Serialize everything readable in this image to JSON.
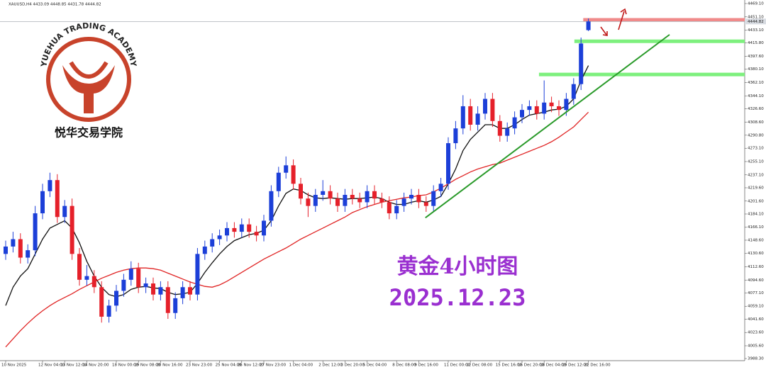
{
  "chart_data": {
    "type": "candlestick",
    "header": "XAUUSD,H4  4433.09 4448.85 4431.78 4444.82",
    "logo_text": "YUEHUA TRADING ACADEMY",
    "logo_name": "悦华交易学院",
    "annotation_title": "黄金4小时图",
    "annotation_date": "2025.12.23",
    "categories": [
      "10 Nov 2025",
      null,
      null,
      null,
      null,
      "12 Nov 04:00",
      null,
      null,
      "13 Nov 12:00",
      null,
      null,
      "14 Nov 20:00",
      null,
      null,
      null,
      "18 Nov 00:00",
      null,
      null,
      "19 Nov 08:00",
      null,
      null,
      "20 Nov 16:00",
      null,
      null,
      null,
      "23 Nov 23:00",
      null,
      null,
      null,
      "25 Nov 04:00",
      null,
      null,
      "26 Nov 12:00",
      null,
      null,
      "27 Nov 23:00",
      null,
      null,
      null,
      "1 Dec 04:00",
      null,
      null,
      null,
      "2 Dec 12:00",
      null,
      null,
      "3 Dec 20:00",
      null,
      null,
      "5 Dec 04:00",
      null,
      null,
      null,
      "8 Dec 08:00",
      null,
      null,
      "9 Dec 16:00",
      null,
      null,
      null,
      "11 Dec 00:00",
      null,
      null,
      "12 Dec 08:00",
      null,
      null,
      null,
      "15 Dec 16:00",
      null,
      null,
      "16 Dec 20:00",
      null,
      null,
      "18 Dec 04:00",
      null,
      null,
      "19 Dec 12:00",
      null,
      null,
      "22 Dec 16:00"
    ],
    "open": [
      4130,
      4140,
      4150,
      4125,
      4135,
      4185,
      4215,
      4230,
      4180,
      4195,
      4130,
      4095,
      4100,
      4085,
      4045,
      4060,
      4080,
      4095,
      4110,
      4085,
      4090,
      4075,
      4085,
      4050,
      4070,
      4085,
      4075,
      4130,
      4140,
      4150,
      4155,
      4165,
      4160,
      4170,
      4160,
      4155,
      4175,
      4215,
      4240,
      4250,
      4225,
      4205,
      4195,
      4210,
      4215,
      4205,
      4195,
      4210,
      4205,
      4200,
      4215,
      4205,
      4200,
      4185,
      4195,
      4205,
      4210,
      4200,
      4195,
      4215,
      4225,
      4280,
      4300,
      4330,
      4305,
      4320,
      4340,
      4310,
      4290,
      4300,
      4315,
      4325,
      4330,
      4320,
      4335,
      4330,
      4325,
      4340,
      4360,
      4433.09
    ],
    "high": [
      4148,
      4160,
      4158,
      4143,
      4195,
      4225,
      4240,
      4238,
      4203,
      4205,
      4138,
      4115,
      4108,
      4093,
      4068,
      4088,
      4103,
      4120,
      4118,
      4098,
      4098,
      4093,
      4093,
      4078,
      4093,
      4093,
      4138,
      4148,
      4158,
      4163,
      4173,
      4173,
      4178,
      4178,
      4168,
      4183,
      4223,
      4248,
      4262,
      4258,
      4233,
      4213,
      4218,
      4230,
      4223,
      4213,
      4218,
      4218,
      4213,
      4223,
      4223,
      4213,
      4208,
      4203,
      4213,
      4218,
      4218,
      4208,
      4223,
      4233,
      4288,
      4310,
      4345,
      4340,
      4330,
      4348,
      4348,
      4318,
      4308,
      4323,
      4333,
      4338,
      4338,
      4365,
      4343,
      4338,
      4348,
      4368,
      4423,
      4448.85
    ],
    "low": [
      4122,
      4132,
      4117,
      4117,
      4127,
      4177,
      4207,
      4172,
      4172,
      4122,
      4087,
      4087,
      4077,
      4037,
      4037,
      4052,
      4072,
      4087,
      4077,
      4077,
      4067,
      4067,
      4042,
      4042,
      4062,
      4067,
      4067,
      4122,
      4132,
      4142,
      4147,
      4152,
      4152,
      4152,
      4147,
      4147,
      4167,
      4207,
      4232,
      4217,
      4197,
      4180,
      4187,
      4202,
      4197,
      4187,
      4187,
      4197,
      4192,
      4192,
      4197,
      4192,
      4177,
      4177,
      4187,
      4197,
      4192,
      4187,
      4187,
      4207,
      4217,
      4272,
      4292,
      4297,
      4297,
      4312,
      4302,
      4282,
      4282,
      4292,
      4307,
      4317,
      4312,
      4312,
      4322,
      4317,
      4317,
      4332,
      4352,
      4431.78
    ],
    "close": [
      4140,
      4150,
      4125,
      4135,
      4185,
      4215,
      4230,
      4180,
      4195,
      4130,
      4095,
      4100,
      4085,
      4045,
      4060,
      4080,
      4095,
      4110,
      4085,
      4090,
      4075,
      4085,
      4050,
      4070,
      4085,
      4075,
      4130,
      4140,
      4150,
      4155,
      4165,
      4160,
      4170,
      4160,
      4155,
      4175,
      4215,
      4240,
      4250,
      4225,
      4205,
      4195,
      4210,
      4215,
      4205,
      4195,
      4210,
      4205,
      4200,
      4215,
      4205,
      4200,
      4185,
      4195,
      4205,
      4210,
      4200,
      4195,
      4215,
      4225,
      4280,
      4300,
      4330,
      4305,
      4320,
      4340,
      4310,
      4290,
      4300,
      4315,
      4325,
      4330,
      4320,
      4335,
      4330,
      4325,
      4340,
      4360,
      4415,
      4444.82
    ],
    "up_color": "#1c3fd8",
    "down_color": "#e5202a",
    "moving_averages": [
      {
        "color": "#111111",
        "values": [
          4060,
          4085,
          4100,
          4110,
          4130,
          4150,
          4165,
          4170,
          4175,
          4165,
          4145,
          4120,
          4100,
          4085,
          4075,
          4072,
          4075,
          4082,
          4085,
          4086,
          4084,
          4083,
          4078,
          4075,
          4076,
          4078,
          4090,
          4105,
          4118,
          4130,
          4140,
          4148,
          4152,
          4156,
          4158,
          4162,
          4175,
          4195,
          4212,
          4218,
          4216,
          4210,
          4206,
          4205,
          4206,
          4205,
          4204,
          4205,
          4205,
          4206,
          4207,
          4205,
          4200,
          4197,
          4197,
          4200,
          4202,
          4200,
          4203,
          4208,
          4225,
          4245,
          4270,
          4285,
          4295,
          4305,
          4305,
          4300,
          4300,
          4305,
          4312,
          4318,
          4320,
          4322,
          4325,
          4326,
          4330,
          4340,
          4365,
          4385
        ]
      },
      {
        "color": "#e02424",
        "values": [
          4004,
          4015,
          4026,
          4036,
          4045,
          4053,
          4060,
          4066,
          4071,
          4076,
          4082,
          4087,
          4092,
          4097,
          4101,
          4105,
          4108,
          4110,
          4111,
          4111,
          4110,
          4108,
          4104,
          4100,
          4096,
          4092,
          4089,
          4086,
          4085,
          4088,
          4093,
          4099,
          4105,
          4111,
          4117,
          4123,
          4128,
          4133,
          4138,
          4144,
          4150,
          4155,
          4160,
          4165,
          4170,
          4175,
          4180,
          4186,
          4190,
          4194,
          4197,
          4200,
          4202,
          4204,
          4206,
          4207,
          4209,
          4210,
          4214,
          4219,
          4225,
          4231,
          4236,
          4241,
          4245,
          4248,
          4251,
          4253,
          4257,
          4261,
          4265,
          4269,
          4273,
          4277,
          4282,
          4288,
          4295,
          4302,
          4312,
          4322
        ]
      }
    ],
    "levels": [
      {
        "value": 4447,
        "color": "#f08a8a",
        "from": 78.3
      },
      {
        "value": 4418,
        "color": "#7ef07e",
        "from": 77.1
      },
      {
        "value": 4373,
        "color": "#7ef07e",
        "from": 72.3
      }
    ],
    "trendline": {
      "color": "#2a9a2a",
      "x": [
        56.9,
        90
      ],
      "y": [
        4179,
        4427
      ]
    },
    "last_price": {
      "value": 4444.82,
      "label": "4444.82"
    },
    "ylim": [
      3986.4,
      4473.9
    ],
    "yticks": [
      {
        "value": 4469.1,
        "label": "4469.10"
      },
      {
        "value": 4451.1,
        "label": "4451.10"
      },
      {
        "value": 4433.1,
        "label": "4433.10"
      },
      {
        "value": 4415.8,
        "label": "4415.80"
      },
      {
        "value": 4397.6,
        "label": "4397.60"
      },
      {
        "value": 4380.1,
        "label": "4380.10"
      },
      {
        "value": 4362.1,
        "label": "4362.10"
      },
      {
        "value": 4344.1,
        "label": "4344.10"
      },
      {
        "value": 4326.6,
        "label": "4326.60"
      },
      {
        "value": 4308.6,
        "label": "4308.60"
      },
      {
        "value": 4290.8,
        "label": "4290.80"
      },
      {
        "value": 4273.1,
        "label": "4273.10"
      },
      {
        "value": 4255.1,
        "label": "4255.10"
      },
      {
        "value": 4237.1,
        "label": "4237.10"
      },
      {
        "value": 4219.6,
        "label": "4219.60"
      },
      {
        "value": 4201.6,
        "label": "4201.60"
      },
      {
        "value": 4184.1,
        "label": "4184.10"
      },
      {
        "value": 4166.1,
        "label": "4166.10"
      },
      {
        "value": 4148.6,
        "label": "4148.60"
      },
      {
        "value": 4130.6,
        "label": "4130.60"
      },
      {
        "value": 4112.6,
        "label": "4112.60"
      },
      {
        "value": 4094.6,
        "label": "4094.60"
      },
      {
        "value": 4077.1,
        "label": "4077.10"
      },
      {
        "value": 4059.1,
        "label": "4059.10"
      },
      {
        "value": 4041.6,
        "label": "4041.60"
      },
      {
        "value": 4023.6,
        "label": "4023.60"
      },
      {
        "value": 4005.6,
        "label": "4005.60"
      },
      {
        "value": 3988.3,
        "label": "3988.30"
      }
    ]
  }
}
